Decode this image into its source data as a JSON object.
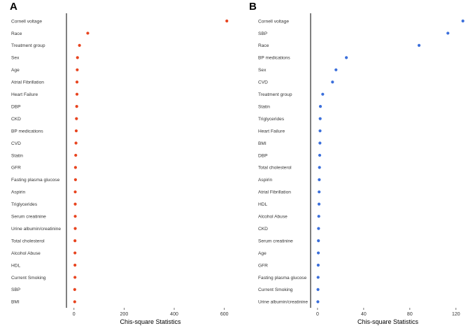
{
  "figure": {
    "colors": {
      "A": "#e8441f",
      "B": "#3b6fdb",
      "axis": "#000000"
    }
  },
  "chart_data": [
    {
      "type": "scatter",
      "panel": "A",
      "xlabel": "Chis-square Statistics",
      "xlim": [
        -30,
        640
      ],
      "xticks": [
        0,
        200,
        400,
        600
      ],
      "categories": [
        "Cornell voltage",
        "Race",
        "Treatment group",
        "Sex",
        "Age",
        "Atrial Fibrillation",
        "Heart Failure",
        "DBP",
        "CKD",
        "BP medications",
        "CVD",
        "Statin",
        "GFR",
        "Fasting plasma glucose",
        "Aspirin",
        "Triglycerides",
        "Serum creatinine",
        "Urine albumin/creatinine",
        "Total cholesterol",
        "Alcohol Abuse",
        "HDL",
        "Current Smoking",
        "SBP",
        "BMI"
      ],
      "values": [
        610,
        55,
        22,
        14,
        13,
        12,
        12,
        11,
        10,
        9,
        8,
        7,
        6,
        6,
        5,
        5,
        5,
        5,
        4,
        4,
        4,
        4,
        3,
        3
      ]
    },
    {
      "type": "scatter",
      "panel": "B",
      "xlabel": "Chis-square Statistics",
      "xlim": [
        -6,
        128
      ],
      "xticks": [
        0,
        40,
        80,
        120
      ],
      "categories": [
        "Cornell voltage",
        "SBP",
        "Race",
        "BP medications",
        "Sex",
        "CVD",
        "Treatment group",
        "Statin",
        "Triglycerides",
        "Heart Failure",
        "BMI",
        "DBP",
        "Total cholesterol",
        "Aspirin",
        "Atrial Fibrillation",
        "HDL",
        "Alcohol Abuse",
        "CKD",
        "Serum creatinine",
        "Age",
        "GFR",
        "Fasting plasma glucose",
        "Current Smoking",
        "Urine albumin/creatinine"
      ],
      "values": [
        126,
        113,
        88,
        25,
        16,
        13,
        4.5,
        2.5,
        2.3,
        2.2,
        2.1,
        1.9,
        1.7,
        1.5,
        1.4,
        1.3,
        1.1,
        0.9,
        0.8,
        0.7,
        0.6,
        0.5,
        0.4,
        0.3
      ]
    }
  ]
}
